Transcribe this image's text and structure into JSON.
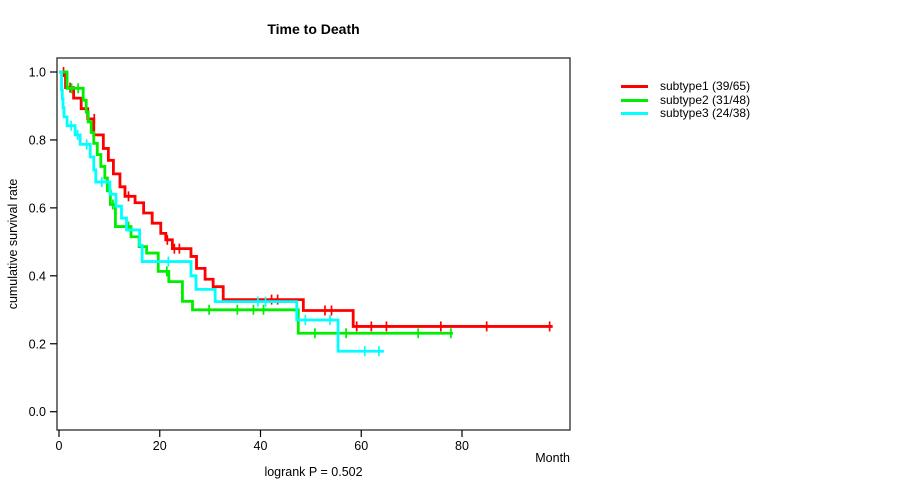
{
  "chart_data": {
    "type": "line",
    "variant": "kaplan-meier-step",
    "title": "Time to Death",
    "xlabel": "Month",
    "ylabel": "cumulative survival rate",
    "annotation": "logrank P = 0.502",
    "xlim": [
      0,
      101
    ],
    "ylim": [
      0,
      1.04
    ],
    "xticks": [
      0,
      20,
      40,
      60,
      80
    ],
    "yticks": [
      0.0,
      0.2,
      0.4,
      0.6,
      0.8,
      1.0
    ],
    "grid": false,
    "legend_position": "right",
    "frame_color": "#3a3a3a",
    "series": [
      {
        "name": "subtype1",
        "label": "subtype1 (39/65)",
        "color": "#ff0000",
        "n": 65,
        "events": 39,
        "end_time": 98.0,
        "steps": [
          [
            0,
            1.0
          ],
          [
            1.3,
            0.954
          ],
          [
            2.9,
            0.923
          ],
          [
            4.4,
            0.892
          ],
          [
            5.7,
            0.862
          ],
          [
            6.9,
            0.815
          ],
          [
            8.8,
            0.775
          ],
          [
            9.8,
            0.74
          ],
          [
            10.8,
            0.7
          ],
          [
            12.1,
            0.662
          ],
          [
            13.1,
            0.634
          ],
          [
            15.1,
            0.615
          ],
          [
            16.8,
            0.585
          ],
          [
            18.5,
            0.555
          ],
          [
            20.2,
            0.525
          ],
          [
            21.2,
            0.506
          ],
          [
            22.5,
            0.48
          ],
          [
            26.2,
            0.457
          ],
          [
            27.3,
            0.422
          ],
          [
            29.0,
            0.39
          ],
          [
            30.6,
            0.368
          ],
          [
            32.6,
            0.33
          ],
          [
            48.5,
            0.298
          ],
          [
            58.4,
            0.251
          ]
        ],
        "censors": [
          [
            0.9,
            1.0
          ],
          [
            2.2,
            0.954
          ],
          [
            7.0,
            0.862
          ],
          [
            13.8,
            0.634
          ],
          [
            21.5,
            0.506
          ],
          [
            22.9,
            0.48
          ],
          [
            23.9,
            0.48
          ],
          [
            42.2,
            0.33
          ],
          [
            43.4,
            0.33
          ],
          [
            52.8,
            0.298
          ],
          [
            54.1,
            0.298
          ],
          [
            59.1,
            0.251
          ],
          [
            62.0,
            0.251
          ],
          [
            65.0,
            0.251
          ],
          [
            75.8,
            0.251
          ],
          [
            84.9,
            0.251
          ],
          [
            97.4,
            0.251
          ]
        ]
      },
      {
        "name": "subtype2",
        "label": "subtype2 (31/48)",
        "color": "#00ee00",
        "n": 48,
        "events": 31,
        "end_time": 78.2,
        "steps": [
          [
            0,
            1.0
          ],
          [
            1.6,
            0.952
          ],
          [
            4.8,
            0.917
          ],
          [
            5.4,
            0.882
          ],
          [
            5.8,
            0.853
          ],
          [
            6.4,
            0.822
          ],
          [
            6.9,
            0.79
          ],
          [
            7.6,
            0.757
          ],
          [
            8.3,
            0.722
          ],
          [
            9.1,
            0.688
          ],
          [
            9.6,
            0.65
          ],
          [
            10.2,
            0.61
          ],
          [
            11.2,
            0.545
          ],
          [
            14.3,
            0.515
          ],
          [
            15.9,
            0.486
          ],
          [
            17.4,
            0.467
          ],
          [
            19.7,
            0.413
          ],
          [
            21.8,
            0.383
          ],
          [
            24.5,
            0.325
          ],
          [
            26.5,
            0.3
          ],
          [
            47.5,
            0.231
          ]
        ],
        "censors": [
          [
            2.5,
            0.952
          ],
          [
            3.8,
            0.952
          ],
          [
            10.7,
            0.61
          ],
          [
            13.8,
            0.545
          ],
          [
            21.4,
            0.413
          ],
          [
            29.8,
            0.3
          ],
          [
            35.4,
            0.3
          ],
          [
            38.6,
            0.3
          ],
          [
            40.6,
            0.3
          ],
          [
            50.8,
            0.231
          ],
          [
            57.0,
            0.231
          ],
          [
            71.3,
            0.231
          ],
          [
            77.8,
            0.231
          ]
        ]
      },
      {
        "name": "subtype3",
        "label": "subtype3 (24/38)",
        "color": "#00ffff",
        "n": 38,
        "events": 24,
        "end_time": 64.5,
        "steps": [
          [
            0,
            1.0
          ],
          [
            0.5,
            0.947
          ],
          [
            0.65,
            0.921
          ],
          [
            0.8,
            0.895
          ],
          [
            1.0,
            0.868
          ],
          [
            1.6,
            0.842
          ],
          [
            3.2,
            0.815
          ],
          [
            4.2,
            0.787
          ],
          [
            6.2,
            0.75
          ],
          [
            6.9,
            0.712
          ],
          [
            7.3,
            0.676
          ],
          [
            10.1,
            0.64
          ],
          [
            11.3,
            0.605
          ],
          [
            12.4,
            0.57
          ],
          [
            13.4,
            0.535
          ],
          [
            16.0,
            0.49
          ],
          [
            16.5,
            0.442
          ],
          [
            26.2,
            0.4
          ],
          [
            27.2,
            0.36
          ],
          [
            31.0,
            0.324
          ],
          [
            47.2,
            0.27
          ],
          [
            55.4,
            0.178
          ]
        ],
        "censors": [
          [
            2.4,
            0.842
          ],
          [
            3.7,
            0.815
          ],
          [
            5.5,
            0.787
          ],
          [
            8.5,
            0.676
          ],
          [
            21.7,
            0.442
          ],
          [
            39.5,
            0.324
          ],
          [
            41.0,
            0.324
          ],
          [
            48.9,
            0.27
          ],
          [
            53.8,
            0.27
          ],
          [
            60.7,
            0.178
          ],
          [
            63.5,
            0.178
          ]
        ]
      }
    ]
  }
}
